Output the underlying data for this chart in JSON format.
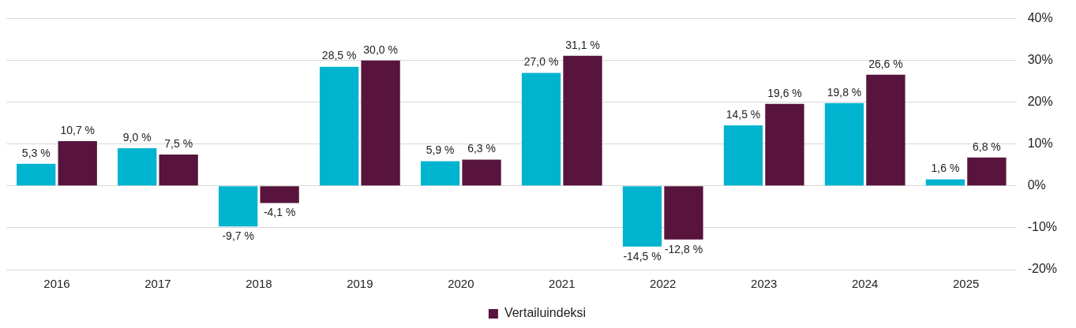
{
  "chart_data": {
    "type": "bar",
    "categories": [
      "2016",
      "2017",
      "2018",
      "2019",
      "2020",
      "2021",
      "2022",
      "2023",
      "2024",
      "2025"
    ],
    "series": [
      {
        "color": "#00b4d0",
        "values": [
          5.3,
          9.0,
          -9.7,
          28.5,
          5.9,
          27.0,
          -14.5,
          14.5,
          19.8,
          1.6
        ],
        "value_labels": [
          "5,3 %",
          "9,0 %",
          "-9,7 %",
          "28,5 %",
          "5,9 %",
          "27,0 %",
          "-14,5 %",
          "14,5 %",
          "19,8 %",
          "1,6 %"
        ]
      },
      {
        "name": "Vertailuindeksi",
        "color": "#58143c",
        "values": [
          10.7,
          7.5,
          -4.1,
          30.0,
          6.3,
          31.1,
          -12.8,
          19.6,
          26.6,
          6.8
        ],
        "value_labels": [
          "10,7 %",
          "7,5 %",
          "-4,1 %",
          "30,0 %",
          "6,3 %",
          "31,1 %",
          "-12,8 %",
          "19,6 %",
          "26,6 %",
          "6,8 %"
        ]
      }
    ],
    "ylim": [
      -20,
      40
    ],
    "yticks": [
      {
        "value": -20,
        "label": "-20%"
      },
      {
        "value": -10,
        "label": "-10%"
      },
      {
        "value": 0,
        "label": "0%"
      },
      {
        "value": 10,
        "label": "10%"
      },
      {
        "value": 20,
        "label": "20%"
      },
      {
        "value": 30,
        "label": "30%"
      },
      {
        "value": 40,
        "label": "40%"
      }
    ],
    "grid": "y",
    "legend": "bottom"
  }
}
